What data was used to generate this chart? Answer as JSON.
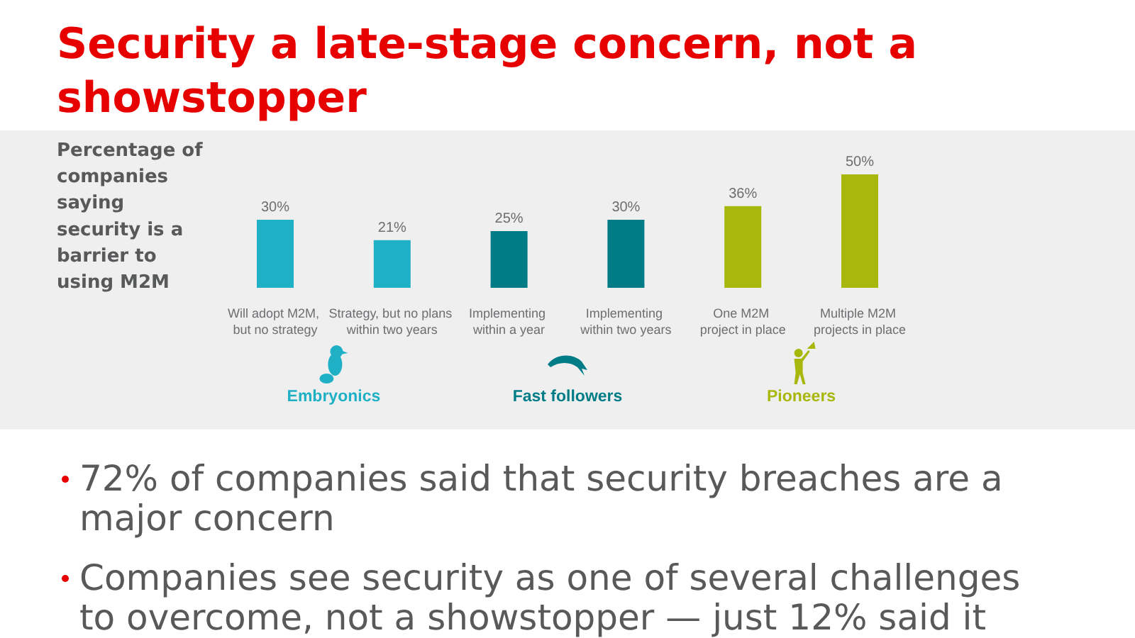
{
  "chart_data": {
    "type": "bar",
    "title": "Security a late-stage concern, not a showstopper",
    "ylabel": "Percentage of companies saying security is a barrier to using M2M",
    "categories": [
      "Will adopt M2M, but no strategy",
      "Strategy, but no plans within two years",
      "Implementing within a year",
      "Implementing within two years",
      "One M2M project in place",
      "Multiple M2M projects in place"
    ],
    "values": [
      30,
      21,
      25,
      30,
      36,
      50
    ],
    "value_labels": [
      "30%",
      "21%",
      "25%",
      "30%",
      "36%",
      "50%"
    ],
    "colors": [
      "#1fb0c6",
      "#1fb0c6",
      "#007c86",
      "#007c86",
      "#a8b70c",
      "#a8b70c"
    ],
    "annotations": [
      "Embryonics",
      "Fast followers",
      "Pioneers",
      "72% of companies said that security breaches are a major concern",
      "Companies see security as one of several challenges to overcome, not a showstopper — just 12% said it"
    ]
  }
}
